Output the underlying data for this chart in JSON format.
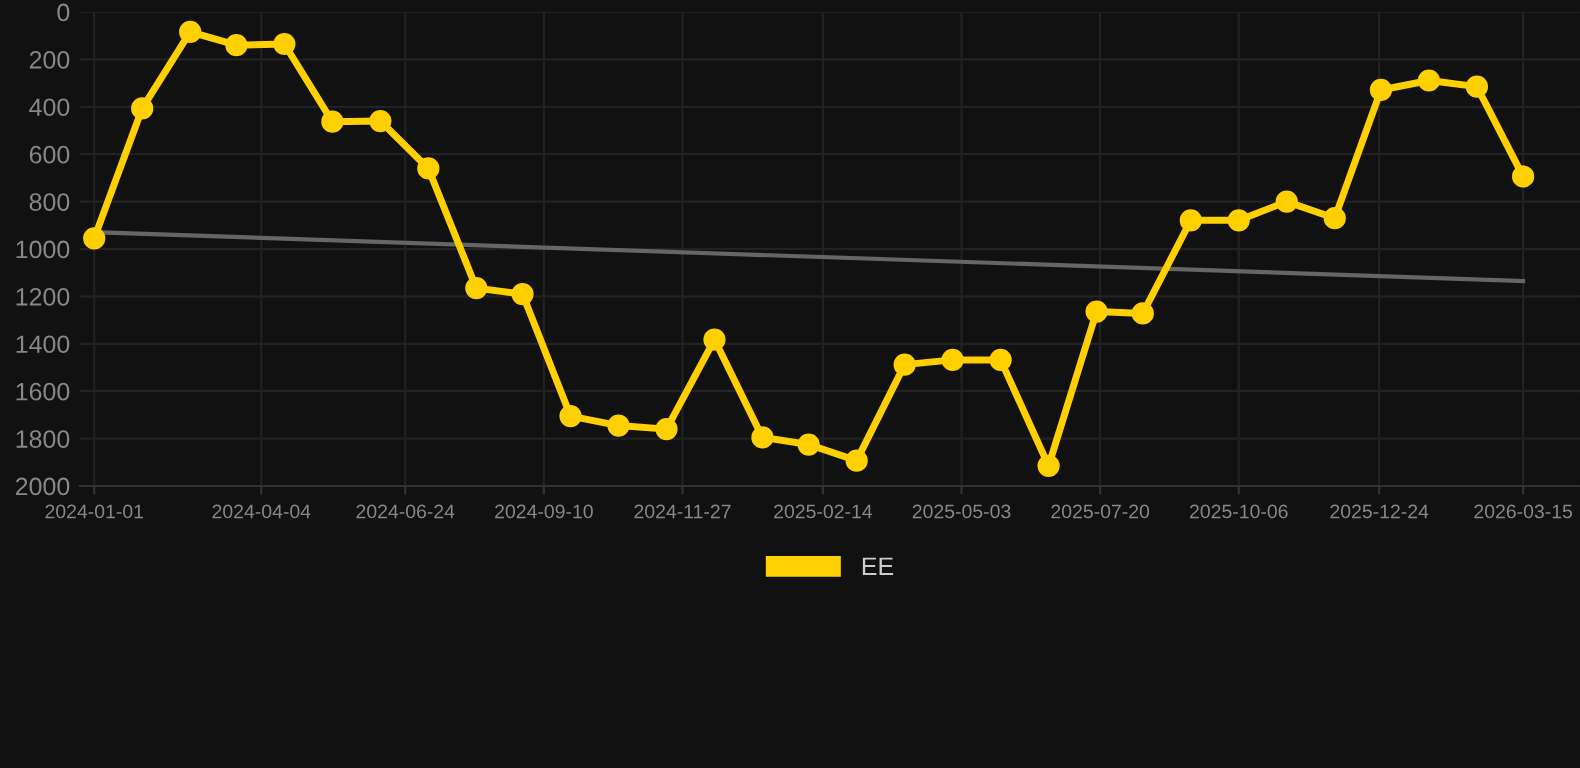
{
  "chart_data": {
    "type": "line",
    "x": [
      "2024-01-01",
      "2024-01-28",
      "2024-02-24",
      "2024-03-21",
      "2024-04-17",
      "2024-05-14",
      "2024-06-10",
      "2024-07-07",
      "2024-08-03",
      "2024-08-29",
      "2024-09-25",
      "2024-10-22",
      "2024-11-18",
      "2024-12-15",
      "2025-01-11",
      "2025-02-06",
      "2025-03-05",
      "2025-04-01",
      "2025-04-28",
      "2025-05-25",
      "2025-06-21",
      "2025-07-18",
      "2025-08-13",
      "2025-09-09",
      "2025-10-06",
      "2025-11-02",
      "2025-11-29",
      "2025-12-25",
      "2026-01-21",
      "2026-02-17",
      "2026-03-15"
    ],
    "series": [
      {
        "name": "EE",
        "color": "#ffd000",
        "marker": "circle",
        "values": [
          955,
          407,
          84,
          140,
          135,
          463,
          460,
          660,
          1165,
          1190,
          1705,
          1745,
          1760,
          1382,
          1795,
          1825,
          1893,
          1488,
          1468,
          1468,
          1915,
          1264,
          1272,
          879,
          879,
          800,
          870,
          329,
          289,
          315,
          694
        ]
      },
      {
        "type": "line",
        "color": "#666666",
        "marker": "none",
        "x": [
          "2024-01-01",
          "2026-03-15"
        ],
        "values": [
          929,
          1135
        ]
      }
    ],
    "xlim": [
      "2023-12-24",
      "2026-04-16"
    ],
    "xticks": [
      "2024-01-01",
      "2024-04-04",
      "2024-06-24",
      "2024-09-10",
      "2024-11-27",
      "2025-02-14",
      "2025-05-03",
      "2025-07-20",
      "2025-10-06",
      "2025-12-24",
      "2026-03-15"
    ],
    "ylim": [
      2000,
      0
    ],
    "yticks": [
      0,
      200,
      400,
      600,
      800,
      1000,
      1200,
      1400,
      1600,
      1800,
      2000
    ],
    "grid": true,
    "legend": "bottom"
  }
}
